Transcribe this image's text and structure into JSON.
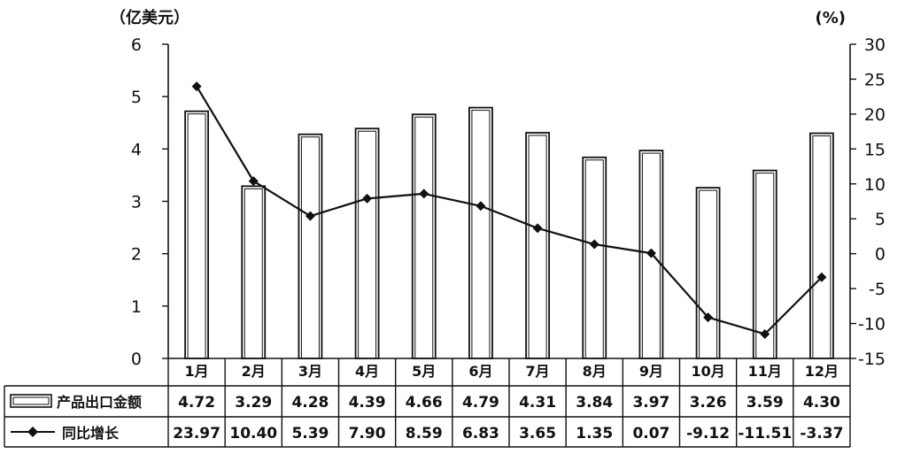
{
  "chart_data": {
    "type": "bar",
    "y_left_unit": "（亿美元）",
    "y_right_unit": "(%)",
    "categories": [
      "1月",
      "2月",
      "3月",
      "4月",
      "5月",
      "6月",
      "7月",
      "8月",
      "9月",
      "10月",
      "11月",
      "12月"
    ],
    "ylim_left": [
      0,
      6
    ],
    "ylim_right": [
      -15,
      30
    ],
    "y_left_ticks": [
      "0",
      "1",
      "2",
      "3",
      "4",
      "5",
      "6"
    ],
    "y_right_ticks": [
      "-15",
      "-10",
      "-5",
      "0",
      "5",
      "10",
      "15",
      "20",
      "25",
      "30"
    ],
    "series": [
      {
        "name": "产品出口金额",
        "type": "bar",
        "axis": "left",
        "values": [
          4.72,
          3.29,
          4.28,
          4.39,
          4.66,
          4.79,
          4.31,
          3.84,
          3.97,
          3.26,
          3.59,
          4.3
        ],
        "labels": [
          "4.72",
          "3.29",
          "4.28",
          "4.39",
          "4.66",
          "4.79",
          "4.31",
          "3.84",
          "3.97",
          "3.26",
          "3.59",
          "4.30"
        ]
      },
      {
        "name": "同比增长",
        "type": "line",
        "axis": "right",
        "values": [
          23.97,
          10.4,
          5.39,
          7.9,
          8.59,
          6.83,
          3.65,
          1.35,
          0.07,
          -9.12,
          -11.51,
          -3.37
        ],
        "labels": [
          "23.97",
          "10.40",
          "5.39",
          "7.90",
          "8.59",
          "6.83",
          "3.65",
          "1.35",
          "0.07",
          "-9.12",
          "-11.51",
          "-3.37"
        ]
      }
    ],
    "legend": "data-table-rows",
    "grid": false,
    "colors": {
      "bar_fill": "#ffffff",
      "bar_stroke": "#111111",
      "line": "#111111"
    }
  }
}
